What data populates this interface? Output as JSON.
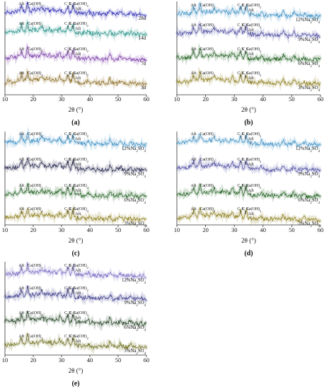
{
  "chart_data": [
    {
      "type": "line",
      "panel_label": "(a)",
      "xlabel": "2θ (°)",
      "xlim": [
        10,
        60
      ],
      "xticks": [
        10,
        20,
        30,
        40,
        50,
        60
      ],
      "series": [
        {
          "name": "28d",
          "color": "#2a2ab4"
        },
        {
          "name": "14d",
          "color": "#1f8f86"
        },
        {
          "name": "7d",
          "color": "#7a3aa8"
        },
        {
          "name": "3d",
          "color": "#8a6a1e"
        }
      ],
      "peaks": [
        {
          "label": "Aft",
          "x": 15.8
        },
        {
          "label": "Ca(OH)2",
          "x": 18.0
        },
        {
          "label": "C3S",
          "x": 32.2
        },
        {
          "label": "C2S",
          "x": 33.8
        },
        {
          "label": "Ca(OH)2",
          "x": 34.1
        },
        {
          "label": "Aft",
          "x": 35.8
        }
      ]
    },
    {
      "type": "line",
      "panel_label": "(b)",
      "xlabel": "2θ (°)",
      "xlim": [
        10,
        60
      ],
      "xticks": [
        10,
        20,
        30,
        40,
        50,
        60
      ],
      "series": [
        {
          "name": "12%Na2SO4",
          "color": "#3b8fc4"
        },
        {
          "name": "9%Na2SO4",
          "color": "#4a4aa0"
        },
        {
          "name": "6%Na2SO4",
          "color": "#1e5e1e"
        },
        {
          "name": "3%Na2SO4",
          "color": "#8a7a14"
        }
      ],
      "peaks": [
        {
          "label": "Aft",
          "x": 15.8
        },
        {
          "label": "Ca(OH)2",
          "x": 18.0
        },
        {
          "label": "C3S",
          "x": 32.2
        },
        {
          "label": "C2S",
          "x": 33.8
        },
        {
          "label": "Ca(OH)2",
          "x": 34.1
        },
        {
          "label": "Aft",
          "x": 35.8
        }
      ]
    },
    {
      "type": "line",
      "panel_label": "(c)",
      "xlabel": "2θ (°)",
      "xlim": [
        10,
        60
      ],
      "xticks": [
        10,
        20,
        30,
        40,
        50,
        60
      ],
      "series": [
        {
          "name": "12%Na2SO4",
          "color": "#3b8fc4"
        },
        {
          "name": "9%Na2SO4",
          "color": "#1f1f4a"
        },
        {
          "name": "6%Na2SO4",
          "color": "#1e5e1e"
        },
        {
          "name": "3%Na2SO4",
          "color": "#8a7a14"
        }
      ],
      "peaks": [
        {
          "label": "Aft",
          "x": 15.8
        },
        {
          "label": "Ca(OH)2",
          "x": 18.0
        },
        {
          "label": "C3S",
          "x": 32.2
        },
        {
          "label": "C2S",
          "x": 33.8
        },
        {
          "label": "Ca(OH)2",
          "x": 34.1
        },
        {
          "label": "Aft",
          "x": 35.8
        }
      ]
    },
    {
      "type": "line",
      "panel_label": "(d)",
      "xlabel": "2θ (°)",
      "xlim": [
        10,
        60
      ],
      "xticks": [
        10,
        20,
        30,
        40,
        50,
        60
      ],
      "series": [
        {
          "name": "12%Na2SO4",
          "color": "#3b8fc4"
        },
        {
          "name": "9%Na2SO4",
          "color": "#4a4aa0"
        },
        {
          "name": "6%Na2SO4",
          "color": "#1e5e1e"
        },
        {
          "name": "3%Na2SO4",
          "color": "#8a7a14"
        }
      ],
      "peaks": [
        {
          "label": "Aft",
          "x": 15.8
        },
        {
          "label": "Ca(OH)2",
          "x": 18.0
        },
        {
          "label": "C3S",
          "x": 32.2
        },
        {
          "label": "C2S",
          "x": 33.8
        },
        {
          "label": "Ca(OH)2",
          "x": 34.1
        },
        {
          "label": "Aft",
          "x": 35.8
        }
      ]
    },
    {
      "type": "line",
      "panel_label": "(e)",
      "xlabel": "2θ (°)",
      "xlim": [
        10,
        60
      ],
      "xticks": [
        10,
        20,
        30,
        40,
        50,
        60
      ],
      "series": [
        {
          "name": "12%Na2SO4",
          "color": "#7a6ac4"
        },
        {
          "name": "9%Na2SO4",
          "color": "#3a3a8a"
        },
        {
          "name": "6%Na2SO4",
          "color": "#1e3e1e"
        },
        {
          "name": "3%Na2SO4",
          "color": "#6a6a14"
        }
      ],
      "peaks": [
        {
          "label": "Aft",
          "x": 15.8
        },
        {
          "label": "Ca(OH)2",
          "x": 18.0
        },
        {
          "label": "C3S",
          "x": 32.2
        },
        {
          "label": "C2S",
          "x": 33.8
        },
        {
          "label": "Ca(OH)2",
          "x": 34.1
        },
        {
          "label": "Aft",
          "x": 35.8
        }
      ]
    }
  ]
}
